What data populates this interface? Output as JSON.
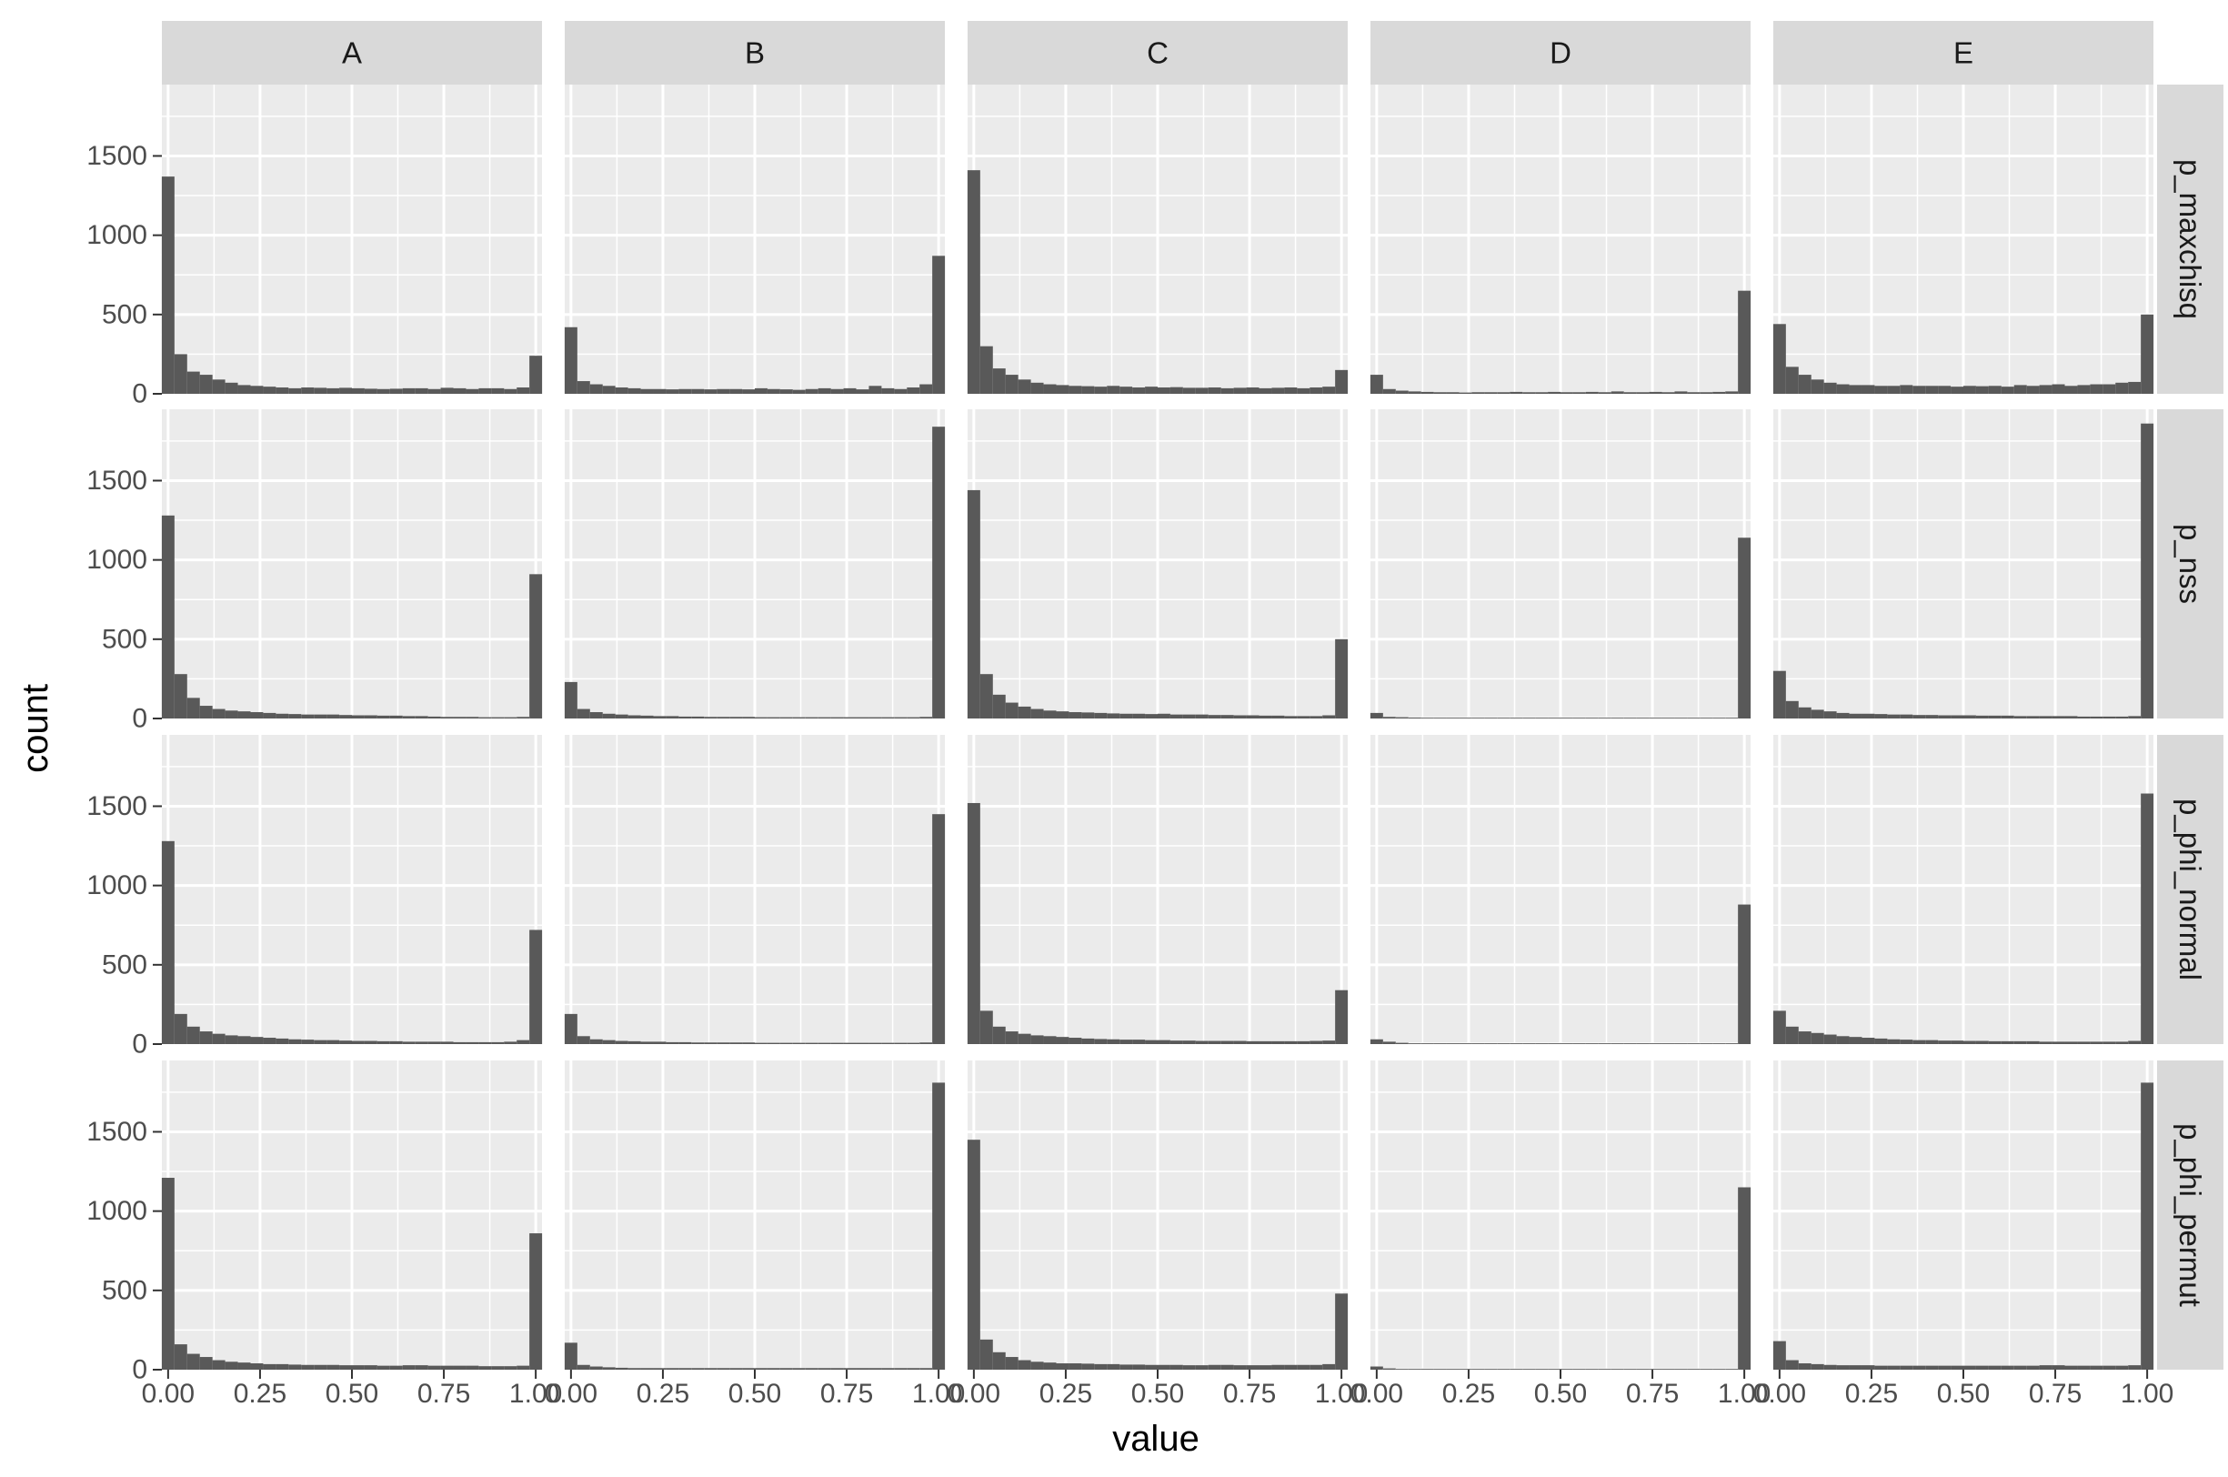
{
  "chart_data": {
    "type": "bar",
    "facet_columns": [
      "A",
      "B",
      "C",
      "D",
      "E"
    ],
    "facet_rows": [
      "p_maxchisq",
      "p_nss",
      "p_phi_normal",
      "p_phi_permut"
    ],
    "xlabel": "value",
    "ylabel": "count",
    "xlim": [
      -0.017,
      1.017
    ],
    "ylim": [
      0,
      1950
    ],
    "xticks": [
      0,
      0.25,
      0.5,
      0.75,
      1
    ],
    "xtick_labels": [
      "0.00",
      "0.25",
      "0.50",
      "0.75",
      "1.00"
    ],
    "yticks": [
      0,
      500,
      1000,
      1500
    ],
    "ytick_labels": [
      "0",
      "500",
      "1000",
      "1500"
    ],
    "bins": 30,
    "bin_width": 0.0345,
    "bin_centers": [
      0,
      0.0345,
      0.069,
      0.1034,
      0.1379,
      0.1724,
      0.2069,
      0.2414,
      0.2759,
      0.3103,
      0.3448,
      0.3793,
      0.4138,
      0.4483,
      0.4828,
      0.5172,
      0.5517,
      0.5862,
      0.6207,
      0.6552,
      0.6897,
      0.7241,
      0.7586,
      0.7931,
      0.8276,
      0.8621,
      0.8966,
      0.931,
      0.9655,
      1
    ],
    "panels": {
      "p_maxchisq": {
        "A": [
          1370,
          250,
          140,
          120,
          90,
          70,
          55,
          50,
          45,
          40,
          35,
          40,
          38,
          35,
          38,
          35,
          32,
          30,
          32,
          35,
          35,
          30,
          38,
          35,
          30,
          35,
          35,
          30,
          40,
          240
        ],
        "B": [
          420,
          80,
          60,
          50,
          40,
          35,
          30,
          30,
          28,
          30,
          30,
          28,
          30,
          30,
          28,
          35,
          30,
          28,
          25,
          30,
          35,
          30,
          35,
          28,
          50,
          35,
          30,
          40,
          60,
          870
        ],
        "C": [
          1410,
          300,
          160,
          120,
          90,
          70,
          60,
          55,
          50,
          48,
          45,
          50,
          45,
          40,
          45,
          40,
          42,
          38,
          38,
          40,
          35,
          38,
          40,
          35,
          38,
          40,
          35,
          40,
          45,
          150
        ],
        "D": [
          120,
          30,
          20,
          15,
          12,
          10,
          10,
          8,
          10,
          10,
          10,
          12,
          10,
          10,
          12,
          10,
          10,
          12,
          10,
          15,
          10,
          10,
          12,
          10,
          15,
          10,
          10,
          12,
          15,
          650
        ],
        "E": [
          440,
          170,
          120,
          90,
          70,
          60,
          55,
          55,
          50,
          50,
          55,
          50,
          50,
          50,
          45,
          50,
          48,
          50,
          45,
          55,
          50,
          55,
          60,
          50,
          55,
          60,
          60,
          70,
          75,
          500
        ]
      },
      "p_nss": {
        "A": [
          1280,
          280,
          130,
          80,
          60,
          50,
          45,
          40,
          35,
          30,
          28,
          25,
          25,
          25,
          22,
          20,
          20,
          18,
          18,
          15,
          15,
          12,
          10,
          10,
          10,
          8,
          8,
          8,
          10,
          910
        ],
        "B": [
          230,
          60,
          40,
          30,
          25,
          20,
          18,
          15,
          15,
          12,
          12,
          10,
          10,
          10,
          10,
          8,
          8,
          8,
          8,
          8,
          8,
          8,
          8,
          8,
          8,
          8,
          8,
          8,
          10,
          1840
        ],
        "C": [
          1440,
          280,
          150,
          100,
          75,
          60,
          50,
          45,
          40,
          38,
          35,
          32,
          30,
          30,
          28,
          30,
          25,
          25,
          25,
          22,
          22,
          20,
          20,
          18,
          18,
          15,
          15,
          15,
          20,
          500
        ],
        "D": [
          35,
          10,
          8,
          6,
          5,
          5,
          5,
          5,
          5,
          5,
          5,
          5,
          5,
          5,
          5,
          5,
          5,
          5,
          5,
          5,
          5,
          5,
          5,
          5,
          5,
          5,
          5,
          5,
          5,
          1140
        ],
        "E": [
          300,
          110,
          70,
          55,
          45,
          35,
          30,
          30,
          28,
          25,
          25,
          22,
          22,
          20,
          20,
          20,
          18,
          18,
          18,
          15,
          15,
          15,
          15,
          15,
          12,
          12,
          12,
          12,
          15,
          1860
        ]
      },
      "p_phi_normal": {
        "A": [
          1280,
          190,
          110,
          80,
          65,
          55,
          50,
          45,
          40,
          35,
          30,
          28,
          25,
          25,
          22,
          20,
          20,
          18,
          18,
          15,
          15,
          15,
          15,
          12,
          12,
          12,
          12,
          15,
          25,
          720
        ],
        "B": [
          190,
          50,
          30,
          25,
          20,
          18,
          15,
          15,
          12,
          12,
          10,
          10,
          10,
          10,
          10,
          8,
          8,
          8,
          8,
          8,
          8,
          8,
          8,
          8,
          8,
          8,
          8,
          8,
          10,
          1450
        ],
        "C": [
          1520,
          210,
          110,
          80,
          65,
          55,
          50,
          45,
          40,
          35,
          32,
          30,
          28,
          28,
          25,
          25,
          22,
          22,
          20,
          20,
          20,
          20,
          18,
          18,
          18,
          18,
          18,
          20,
          22,
          340
        ],
        "D": [
          30,
          15,
          8,
          5,
          5,
          5,
          5,
          5,
          5,
          5,
          5,
          5,
          5,
          5,
          5,
          5,
          5,
          5,
          5,
          5,
          5,
          5,
          5,
          5,
          5,
          5,
          5,
          5,
          5,
          880
        ],
        "E": [
          210,
          110,
          80,
          70,
          60,
          50,
          45,
          40,
          35,
          30,
          28,
          25,
          25,
          22,
          22,
          20,
          20,
          18,
          18,
          18,
          18,
          15,
          15,
          15,
          15,
          15,
          15,
          15,
          20,
          1580
        ]
      },
      "p_phi_permut": {
        "A": [
          1210,
          160,
          100,
          80,
          60,
          50,
          45,
          40,
          35,
          35,
          32,
          30,
          30,
          30,
          28,
          28,
          28,
          25,
          25,
          28,
          28,
          25,
          25,
          25,
          25,
          22,
          22,
          22,
          25,
          860
        ],
        "B": [
          170,
          30,
          20,
          15,
          12,
          10,
          10,
          10,
          10,
          10,
          10,
          10,
          10,
          10,
          10,
          10,
          10,
          10,
          10,
          10,
          10,
          10,
          10,
          10,
          10,
          10,
          10,
          10,
          10,
          1810
        ],
        "C": [
          1450,
          190,
          110,
          80,
          60,
          50,
          45,
          40,
          40,
          38,
          35,
          35,
          32,
          32,
          30,
          30,
          30,
          28,
          28,
          30,
          30,
          28,
          28,
          28,
          30,
          30,
          30,
          30,
          35,
          480
        ],
        "D": [
          20,
          8,
          5,
          5,
          5,
          5,
          5,
          5,
          5,
          5,
          5,
          5,
          5,
          5,
          5,
          5,
          5,
          5,
          5,
          5,
          5,
          5,
          5,
          5,
          5,
          5,
          5,
          5,
          5,
          1150
        ],
        "E": [
          180,
          60,
          40,
          35,
          30,
          28,
          28,
          28,
          25,
          25,
          25,
          25,
          25,
          25,
          25,
          25,
          25,
          25,
          25,
          25,
          25,
          28,
          28,
          25,
          25,
          25,
          25,
          25,
          28,
          1810
        ]
      }
    },
    "grid": true,
    "colors": {
      "bar": "#595959",
      "panel_background": "#ebebeb",
      "grid_major": "#ffffff",
      "strip_background": "#d9d9d9"
    }
  }
}
